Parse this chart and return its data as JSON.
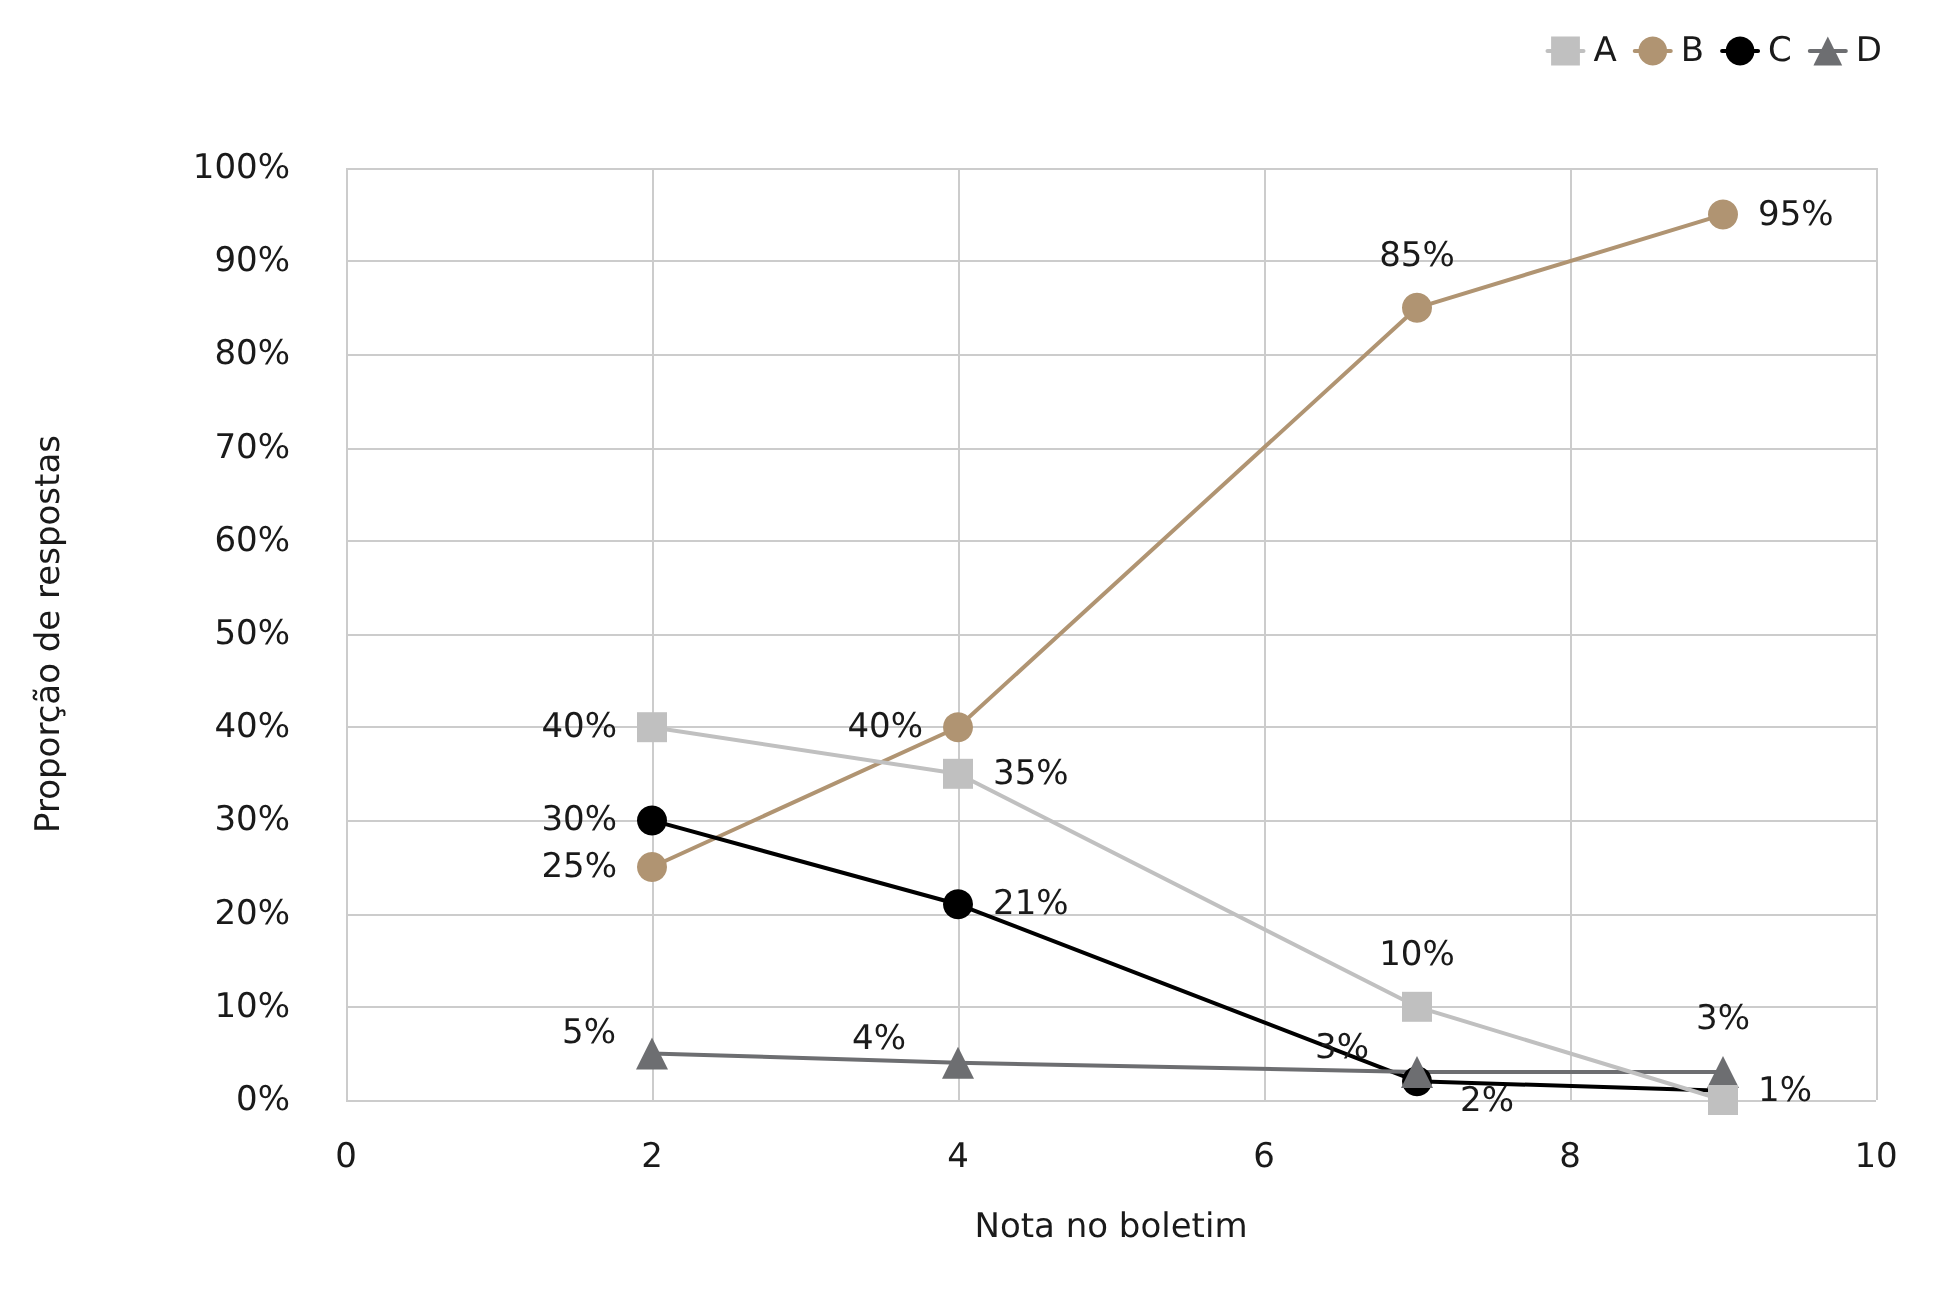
{
  "chart_data": {
    "type": "line",
    "xlabel": "Nota no boletim",
    "ylabel": "Proporção de respostas",
    "x": [
      2,
      4,
      7,
      9
    ],
    "series": [
      {
        "name": "A",
        "color": "#c0c0c0",
        "marker": "square",
        "values": [
          40,
          35,
          10,
          0
        ],
        "value_labels": [
          "40%",
          "35%",
          "10%",
          null
        ]
      },
      {
        "name": "B",
        "color": "#b09472",
        "marker": "circle",
        "values": [
          25,
          40,
          85,
          95
        ],
        "value_labels": [
          "25%",
          "40%",
          "85%",
          "95%"
        ]
      },
      {
        "name": "C",
        "color": "#000000",
        "marker": "circle",
        "values": [
          30,
          21,
          2,
          1
        ],
        "value_labels": [
          "30%",
          "21%",
          "2%",
          "1%"
        ]
      },
      {
        "name": "D",
        "color": "#6d6e71",
        "marker": "triangle",
        "values": [
          5,
          4,
          3,
          3
        ],
        "value_labels": [
          "5%",
          "4%",
          "3%",
          "3%"
        ]
      }
    ],
    "xlim": [
      0,
      10
    ],
    "xticks": [
      0,
      2,
      4,
      6,
      8,
      10
    ],
    "ylim": [
      0,
      100
    ],
    "yticks": [
      {
        "value": 0,
        "label": "0%"
      },
      {
        "value": 10,
        "label": "10%"
      },
      {
        "value": 20,
        "label": "20%"
      },
      {
        "value": 30,
        "label": "30%"
      },
      {
        "value": 40,
        "label": "40%"
      },
      {
        "value": 50,
        "label": "50%"
      },
      {
        "value": 60,
        "label": "60%"
      },
      {
        "value": 70,
        "label": "70%"
      },
      {
        "value": 80,
        "label": "80%"
      },
      {
        "value": 90,
        "label": "90%"
      },
      {
        "value": 100,
        "label": "100%"
      }
    ],
    "grid": true,
    "legend": "top right",
    "line_style": "solid"
  }
}
